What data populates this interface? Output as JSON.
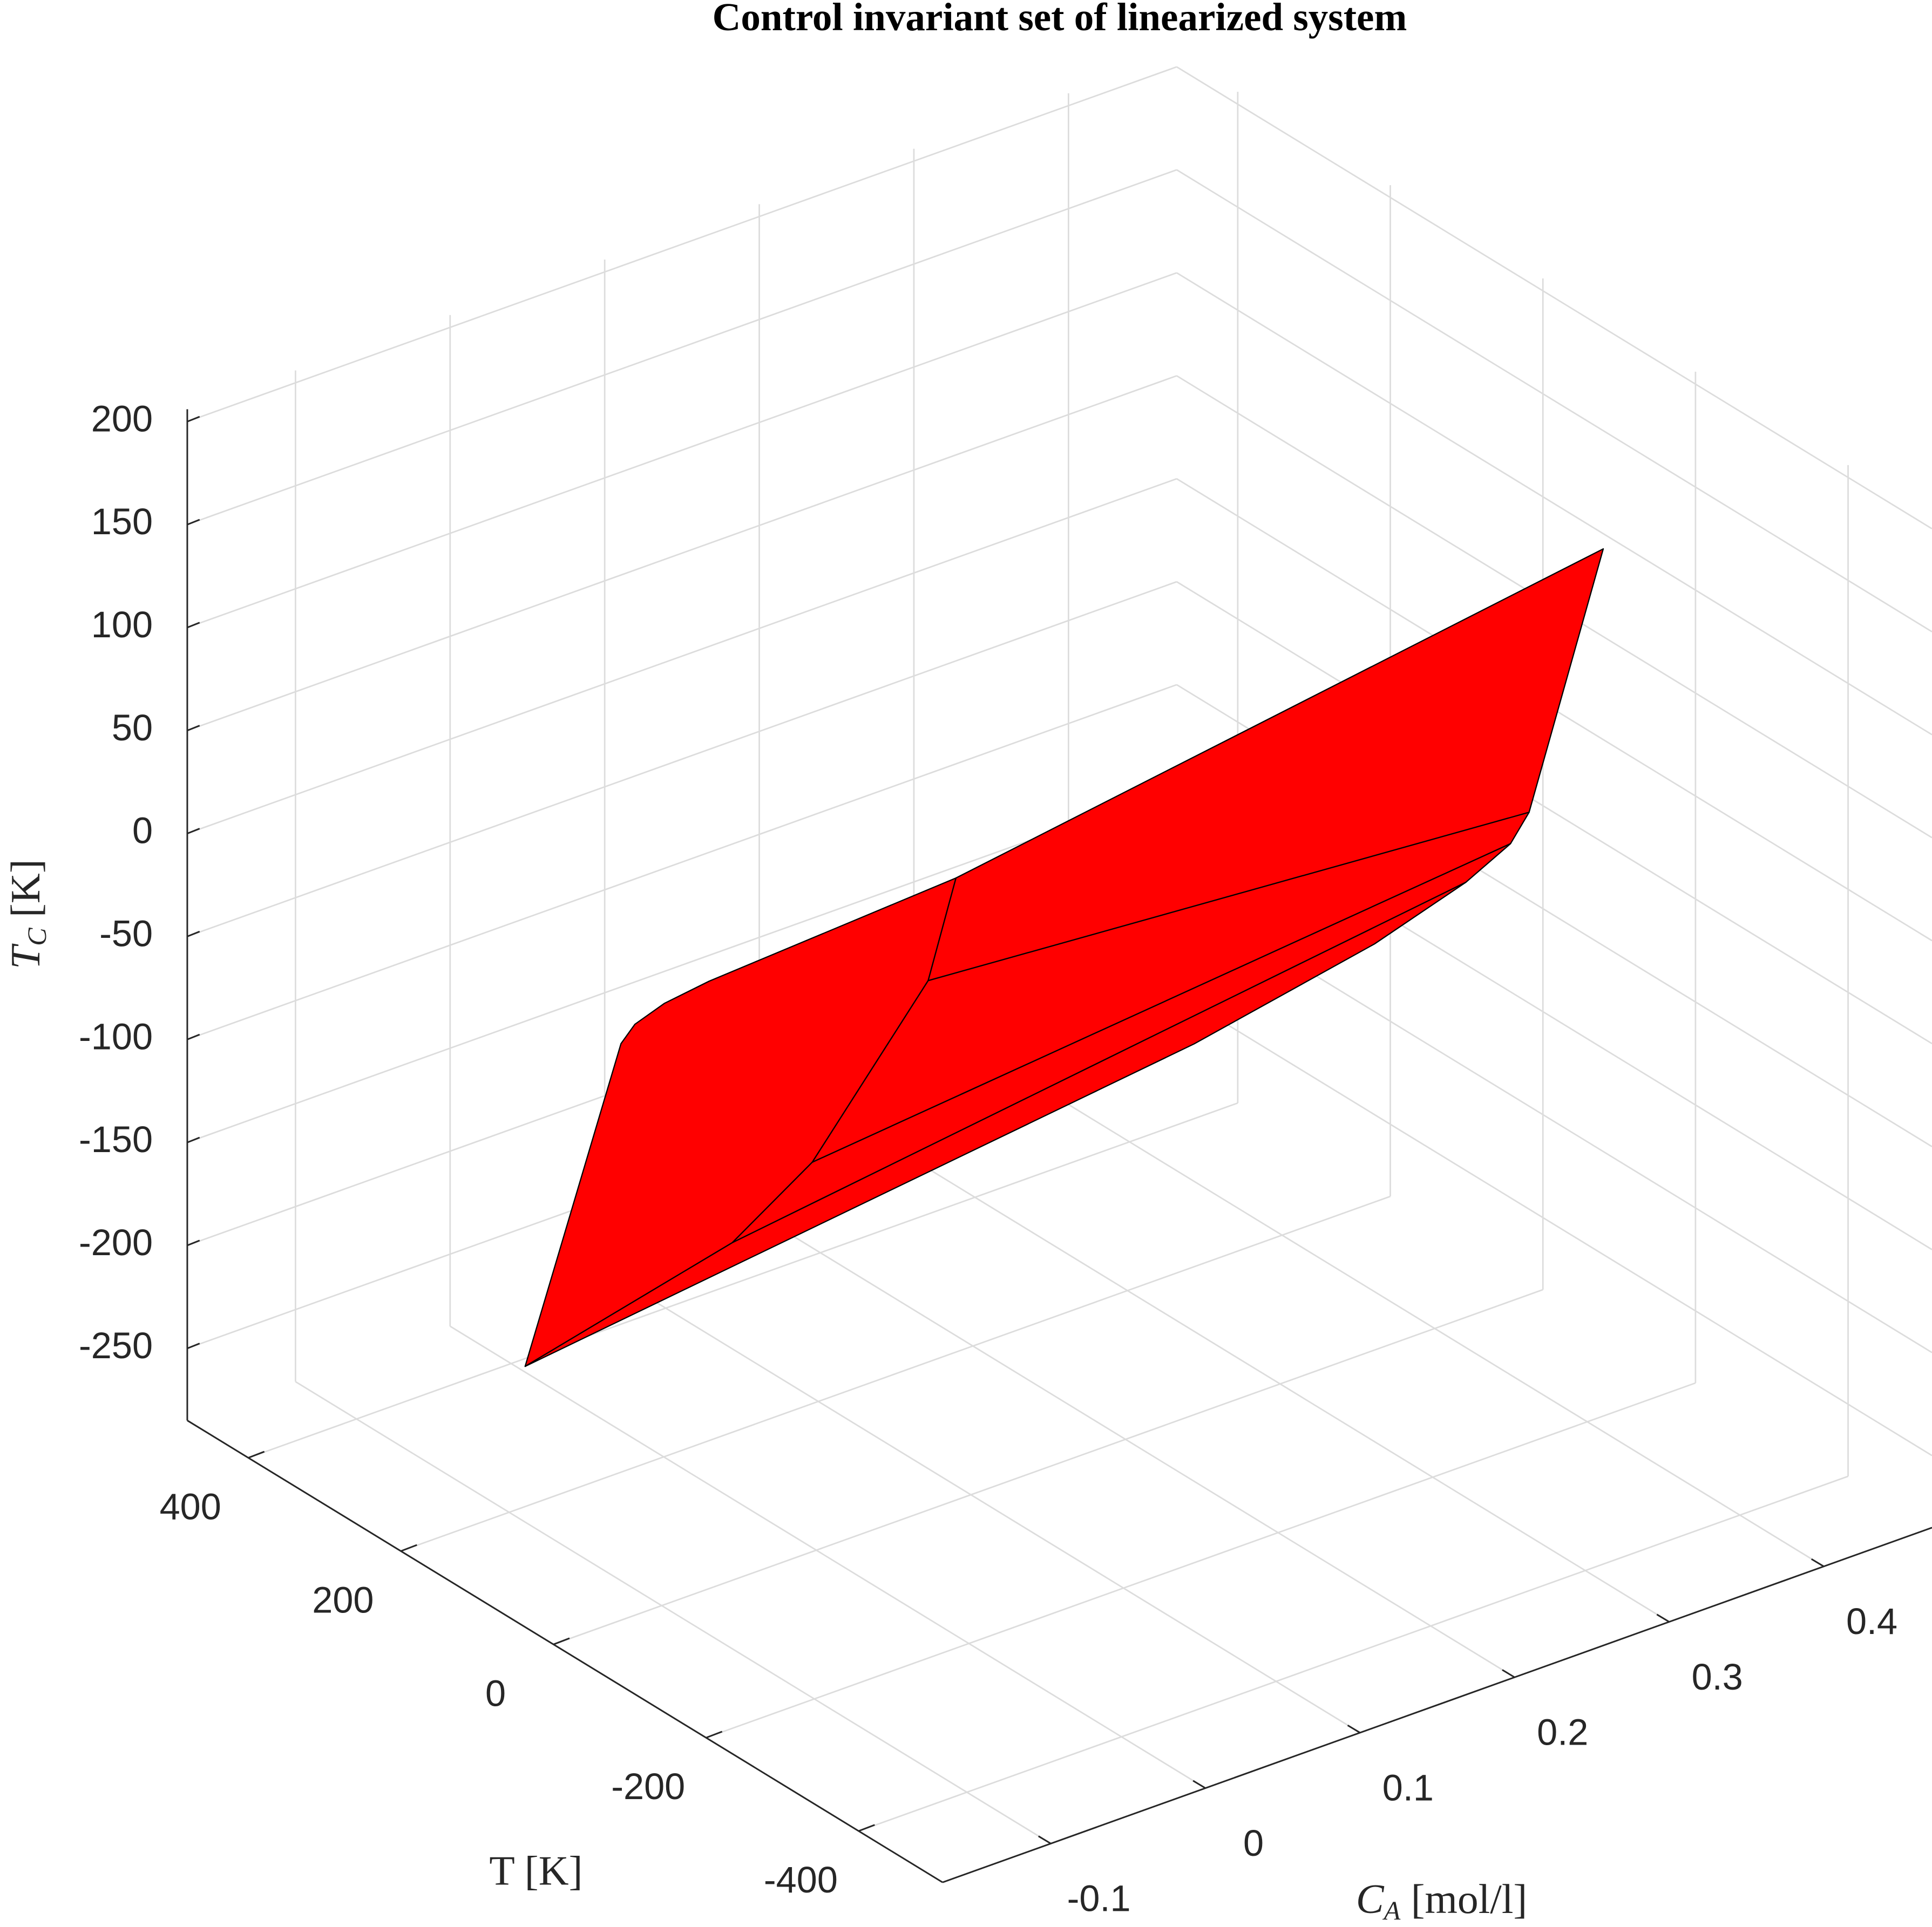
{
  "chart_data": {
    "type": "polytope3d",
    "title": "Control invariant set of linearized system",
    "xlabel": [
      "C",
      "A",
      " [mol/l]"
    ],
    "ylabel": "T [K]",
    "zlabel": [
      "T",
      "C",
      " [K]"
    ],
    "xlim": [
      -0.17,
      0.47
    ],
    "ylim": [
      -510,
      480
    ],
    "zlim": [
      -285,
      206
    ],
    "xticks": [
      -0.1,
      0,
      0.1,
      0.2,
      0.3,
      0.4
    ],
    "yticks": [
      -400,
      -200,
      0,
      200,
      400
    ],
    "zticks": [
      -250,
      -200,
      -150,
      -100,
      -50,
      0,
      50,
      100,
      150,
      200
    ],
    "grid": true,
    "color": "#ff0000",
    "edge_color": "#000000",
    "faces": [
      {
        "x": [
          -0.139,
          -0.077,
          -0.068,
          -0.049,
          -0.02,
          0.041,
          0.023,
          -0.052,
          -0.005
        ],
        "y": [
          100,
          100,
          100,
          100,
          100,
          -100,
          -100,
          -100,
          100
        ],
        "z": [
          -181,
          -41,
          -34,
          -29,
          -26,
          53,
          8,
          -60,
          -157
        ]
      },
      {
        "x": [
          0.041,
          0.361,
          0.313,
          0.023
        ],
        "y": [
          -100,
          -300,
          -300,
          -100
        ],
        "z": [
          53,
          172,
          57,
          8
        ]
      },
      {
        "x": [
          0.023,
          0.313,
          0.301,
          -0.052
        ],
        "y": [
          -100,
          -300,
          -300,
          -100
        ],
        "z": [
          8,
          57,
          45,
          -60
        ]
      },
      {
        "x": [
          -0.052,
          0.301,
          0.272,
          -0.005
        ],
        "y": [
          -100,
          -300,
          -300,
          100
        ],
        "z": [
          -60,
          45,
          34,
          -157
        ]
      },
      {
        "x": [
          -0.005,
          0.272,
          0.213,
          0.195,
          -0.139
        ],
        "y": [
          100,
          -300,
          -300,
          -100,
          100
        ],
        "z": [
          -157,
          34,
          20,
          -69,
          -181
        ]
      }
    ]
  }
}
